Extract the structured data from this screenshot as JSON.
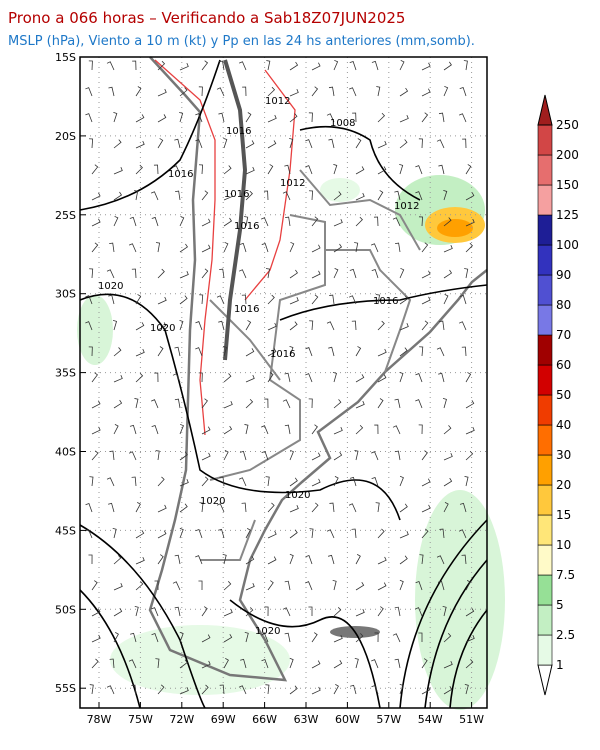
{
  "title": "Prono a 066 horas – Verificando a Sab18Z07JUN2025",
  "subtitle": "MSLP (hPa), Viento a 10 m (kt) y Pp en las 24 hs anteriores (mm,somb).",
  "lat_labels": [
    "15S",
    "20S",
    "25S",
    "30S",
    "35S",
    "40S",
    "45S",
    "50S",
    "55S"
  ],
  "lon_labels": [
    "78W",
    "75W",
    "72W",
    "69W",
    "66W",
    "63W",
    "60W",
    "57W",
    "54W",
    "51W"
  ],
  "isobar_labels": [
    "1012",
    "1008",
    "1016",
    "1016",
    "1012",
    "1016",
    "1012",
    "1016",
    "1020",
    "1016",
    "1016",
    "1020",
    "1016",
    "1020",
    "1020",
    "1020"
  ],
  "colorbar": {
    "labels": [
      "1",
      "2.5",
      "5",
      "7.5",
      "10",
      "15",
      "20",
      "30",
      "40",
      "50",
      "60",
      "70",
      "80",
      "90",
      "100",
      "125",
      "150",
      "200",
      "250"
    ],
    "colors": [
      "#ffffff",
      "#e6fae6",
      "#c3efc3",
      "#96e096",
      "#fffac8",
      "#ffe678",
      "#ffc83c",
      "#ffa000",
      "#ff6e00",
      "#f03c00",
      "#d20000",
      "#a00000",
      "#7878e6",
      "#5050d2",
      "#3232be",
      "#1e1e96",
      "#f5a0a0",
      "#e66e6e",
      "#d24646",
      "#a01e1e"
    ]
  }
}
